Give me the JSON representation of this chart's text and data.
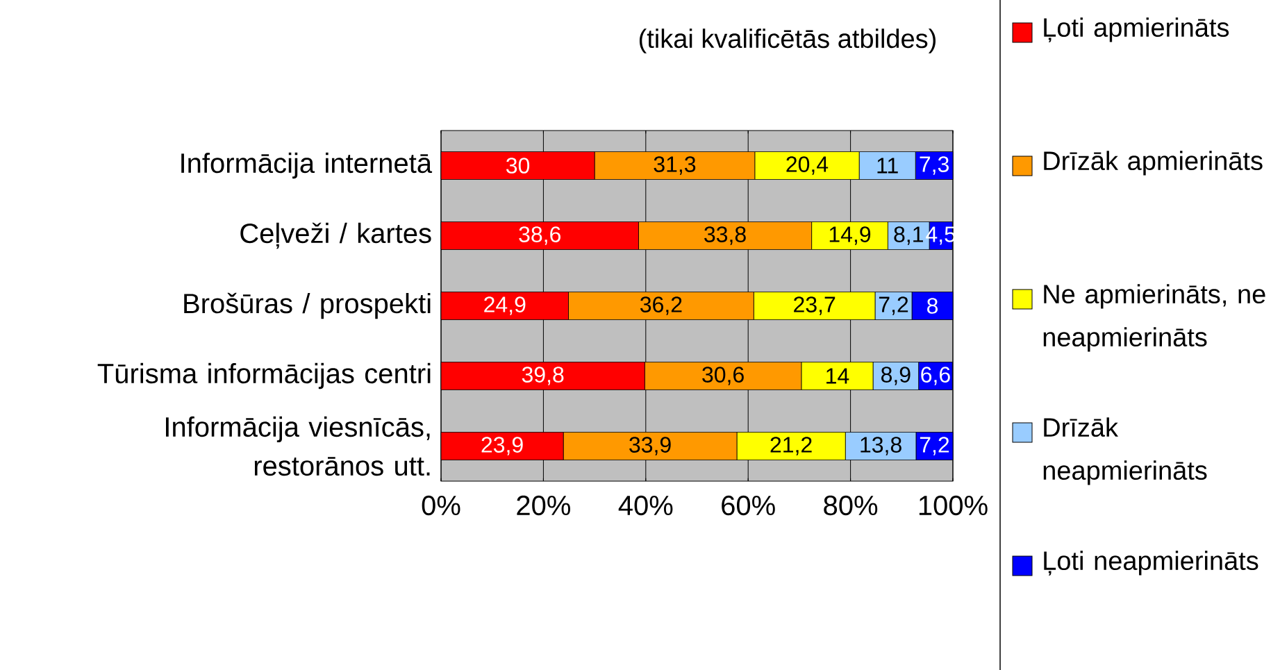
{
  "chart_data": {
    "type": "bar",
    "orientation": "horizontal",
    "stacked": true,
    "title": "(tikai kvalificētās atbildes)",
    "categories": [
      "Informācija internetā",
      "Ceļveži / kartes",
      "Brošūras / prospekti",
      "Tūrisma informācijas centri",
      "Informācija viesnīcās, restorānos utt."
    ],
    "series": [
      {
        "name": "Ļoti apmierināts",
        "color": "#ff0000",
        "values": [
          30,
          38.6,
          24.9,
          39.8,
          23.9
        ],
        "value_labels": [
          "30",
          "38,6",
          "24,9",
          "39,8",
          "23,9"
        ]
      },
      {
        "name": "Drīzāk apmierināts",
        "color": "#ff9900",
        "values": [
          31.3,
          33.8,
          36.2,
          30.6,
          33.9
        ],
        "value_labels": [
          "31,3",
          "33,8",
          "36,2",
          "30,6",
          "33,9"
        ]
      },
      {
        "name": "Ne apmierināts, ne neapmierināts",
        "color": "#ffff00",
        "values": [
          20.4,
          14.9,
          23.7,
          14,
          21.2
        ],
        "value_labels": [
          "20,4",
          "14,9",
          "23,7",
          "14",
          "21,2"
        ]
      },
      {
        "name": "Drīzāk neapmierināts",
        "color": "#99ccff",
        "values": [
          11,
          8.1,
          7.2,
          8.9,
          13.8
        ],
        "value_labels": [
          "11",
          "8,1",
          "7,2",
          "8,9",
          "13,8"
        ]
      },
      {
        "name": "Ļoti neapmierināts",
        "color": "#0000ff",
        "values": [
          7.3,
          4.5,
          8,
          6.6,
          7.2
        ],
        "value_labels": [
          "7,3",
          "4,5",
          "8",
          "6,6",
          "7,2"
        ]
      }
    ],
    "xlim": [
      0,
      100
    ],
    "xticks": [
      {
        "value": 0,
        "label": "0%"
      },
      {
        "value": 20,
        "label": "20%"
      },
      {
        "value": 40,
        "label": "40%"
      },
      {
        "value": 60,
        "label": "60%"
      },
      {
        "value": 80,
        "label": "80%"
      },
      {
        "value": 100,
        "label": "100%"
      }
    ],
    "grid": "x",
    "legend": "right"
  }
}
